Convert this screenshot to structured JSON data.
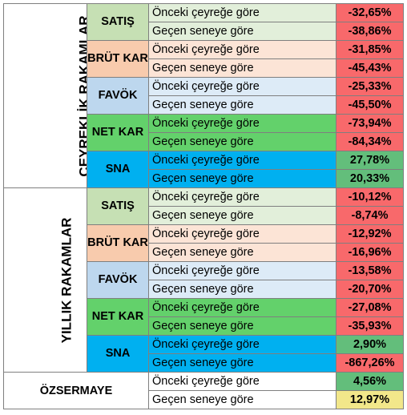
{
  "sections": [
    {
      "title": "ÇEYREKLİK RAKAMLAR",
      "groups": [
        {
          "name": "SATIŞ",
          "bg": "#c6e0b4",
          "label_bg": "#e2efda",
          "rows": [
            {
              "label": "Önceki çeyreğe göre",
              "value": "-32,65%"
            },
            {
              "label": "Geçen seneye göre",
              "value": "-38,86%"
            }
          ]
        },
        {
          "name": "BRÜT KAR",
          "bg": "#f8cbad",
          "label_bg": "#fce4d6",
          "rows": [
            {
              "label": "Önceki çeyreğe göre",
              "value": "-31,85%"
            },
            {
              "label": "Geçen seneye göre",
              "value": "-45,43%"
            }
          ]
        },
        {
          "name": "FAVÖK",
          "bg": "#bdd7ee",
          "label_bg": "#ddebf7",
          "rows": [
            {
              "label": "Önceki çeyreğe göre",
              "value": "-25,33%"
            },
            {
              "label": "Geçen seneye göre",
              "value": "-45,50%"
            }
          ]
        },
        {
          "name": "NET KAR",
          "bg": "#63d16b",
          "label_bg": "#63d16b",
          "rows": [
            {
              "label": "Önceki çeyreğe göre",
              "value": "-73,94%"
            },
            {
              "label": "Geçen seneye göre",
              "value": "-84,34%"
            }
          ]
        },
        {
          "name": "SNA",
          "bg": "#00b0f0",
          "label_bg": "#00b0f0",
          "rows": [
            {
              "label": "Önceki çeyreğe göre",
              "value": "27,78%"
            },
            {
              "label": "Geçen seneye göre",
              "value": "20,33%"
            }
          ]
        }
      ]
    },
    {
      "title": "YILLIK RAKAMLAR",
      "groups": [
        {
          "name": "SATIŞ",
          "bg": "#c6e0b4",
          "label_bg": "#e2efda",
          "rows": [
            {
              "label": "Önceki çeyreğe göre",
              "value": "-10,12%"
            },
            {
              "label": "Geçen seneye göre",
              "value": "-8,74%"
            }
          ]
        },
        {
          "name": "BRÜT KAR",
          "bg": "#f8cbad",
          "label_bg": "#fce4d6",
          "rows": [
            {
              "label": "Önceki çeyreğe göre",
              "value": "-12,92%"
            },
            {
              "label": "Geçen seneye göre",
              "value": "-16,96%"
            }
          ]
        },
        {
          "name": "FAVÖK",
          "bg": "#bdd7ee",
          "label_bg": "#ddebf7",
          "rows": [
            {
              "label": "Önceki çeyreğe göre",
              "value": "-13,58%"
            },
            {
              "label": "Geçen seneye göre",
              "value": "-20,70%"
            }
          ]
        },
        {
          "name": "NET KAR",
          "bg": "#63d16b",
          "label_bg": "#63d16b",
          "rows": [
            {
              "label": "Önceki çeyreğe göre",
              "value": "-27,08%"
            },
            {
              "label": "Geçen seneye göre",
              "value": "-35,93%"
            }
          ]
        },
        {
          "name": "SNA",
          "bg": "#00b0f0",
          "label_bg": "#00b0f0",
          "rows": [
            {
              "label": "Önceki çeyreğe göre",
              "value": "2,90%"
            },
            {
              "label": "Geçen seneye göre",
              "value": "-867,26%"
            }
          ]
        }
      ]
    }
  ],
  "ozsermaye": {
    "title": "ÖZSERMAYE",
    "rows": [
      {
        "label": "Önceki çeyreğe göre",
        "value": "4,56%"
      },
      {
        "label": "Geçen seneye göre",
        "value": "12,97%"
      }
    ]
  },
  "colors": {
    "negative": "#f8696b",
    "positive": "#63be7b",
    "highlight": "#f2e78a",
    "grid": "#7f7f7f"
  }
}
